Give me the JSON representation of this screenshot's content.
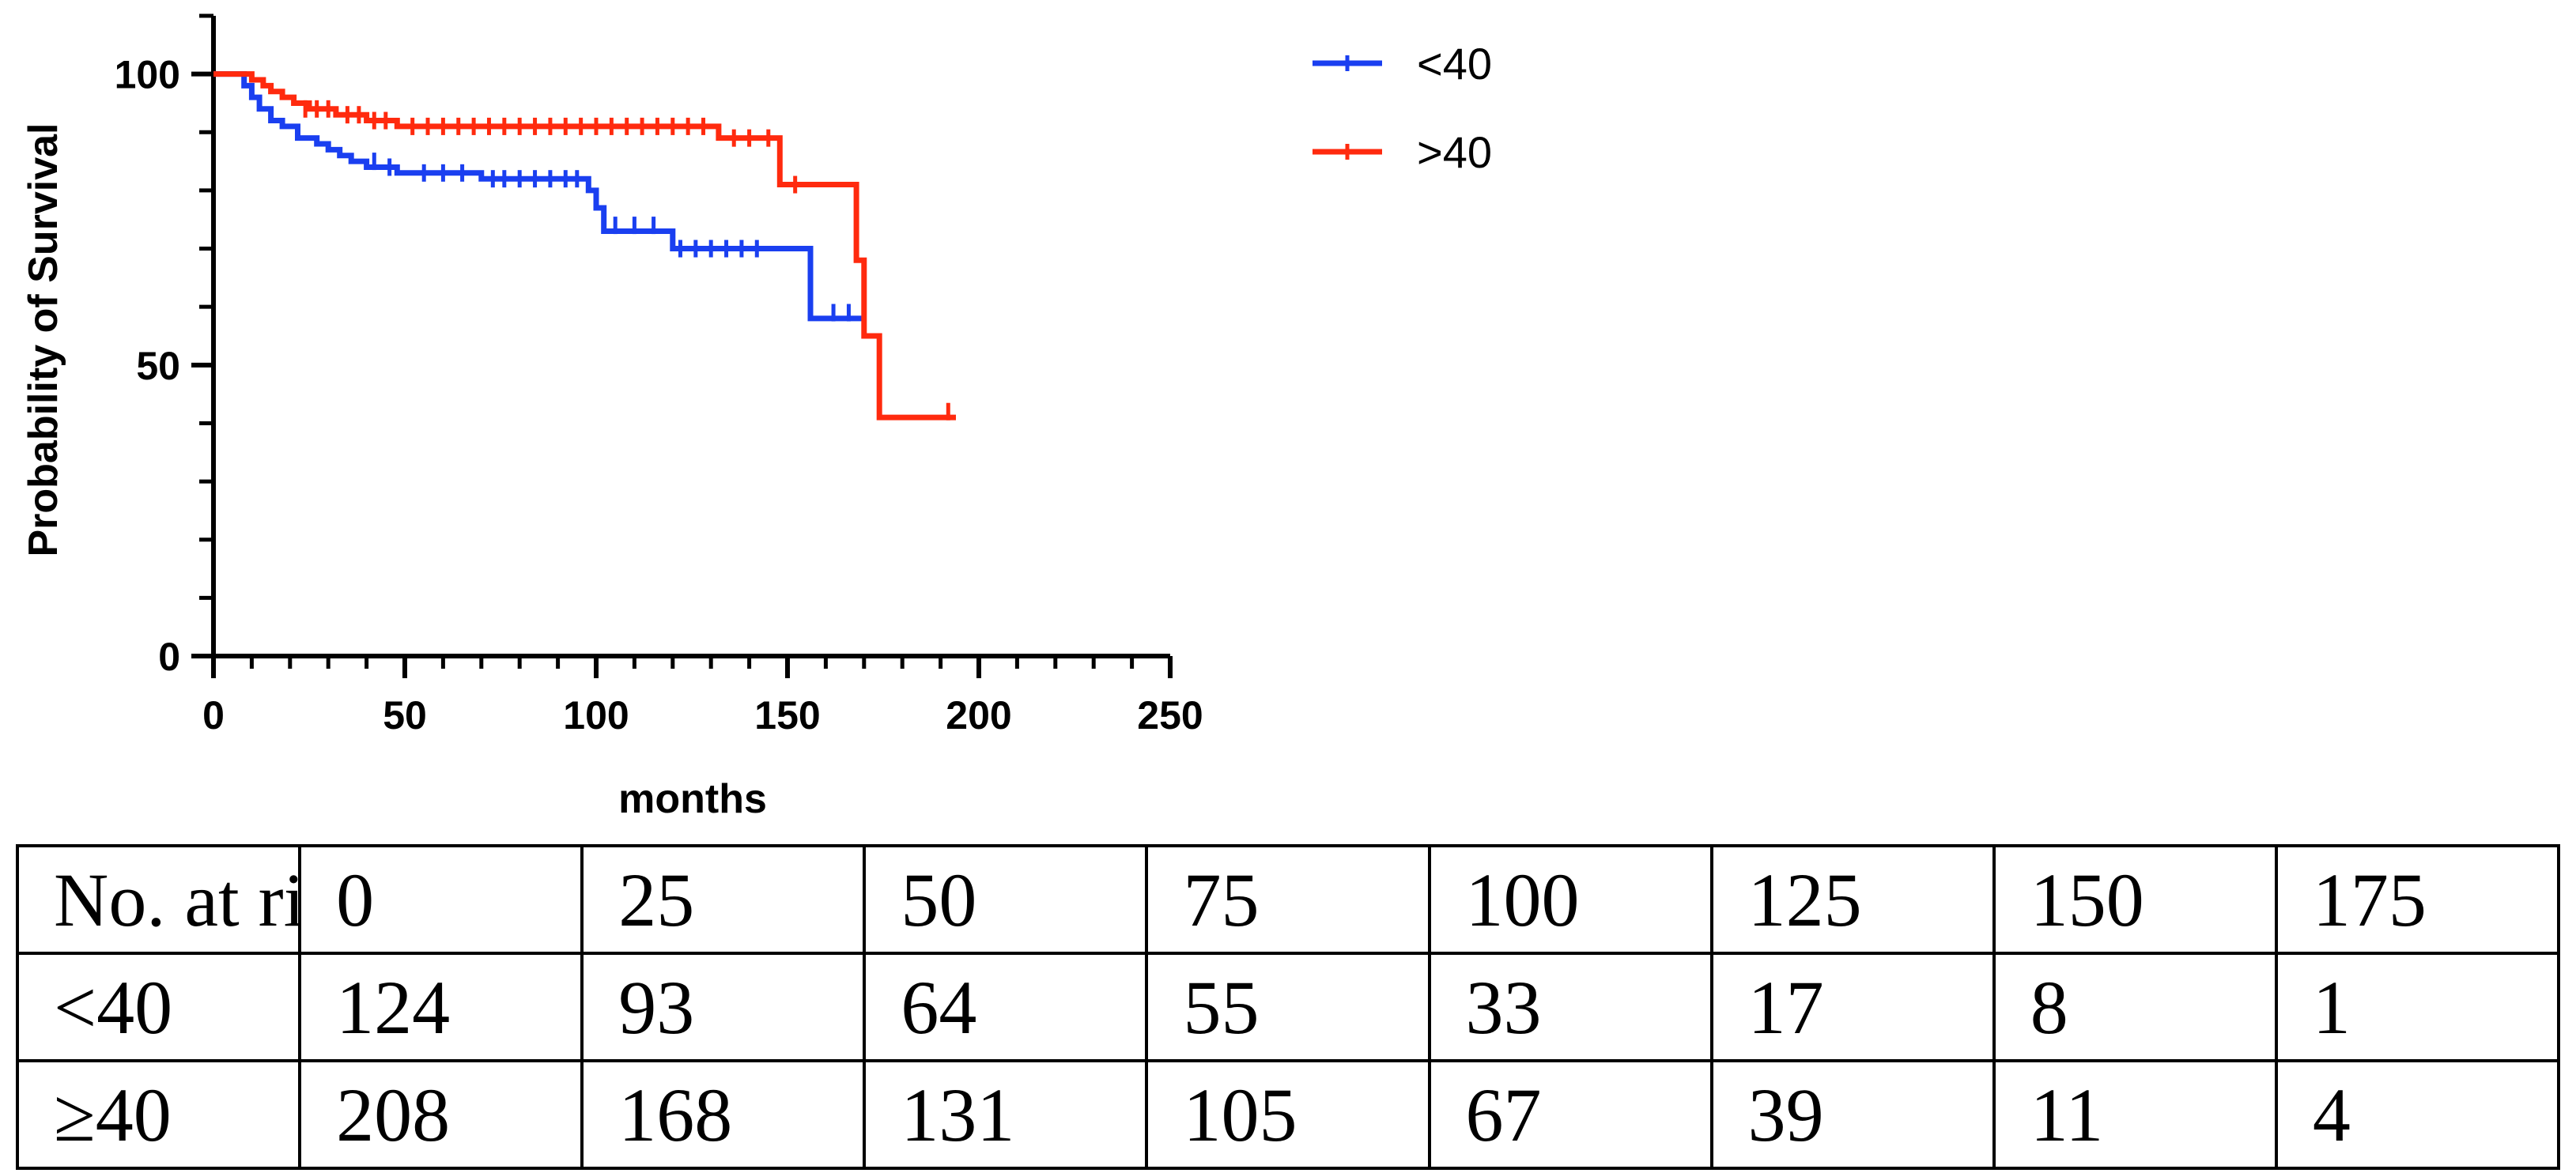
{
  "chart_data": {
    "type": "line",
    "subtype": "kaplan-meier",
    "title": "",
    "xlabel": "months",
    "ylabel": "Probability of Survival",
    "xlim": [
      0,
      250
    ],
    "ylim": [
      0,
      110
    ],
    "xticks": [
      0,
      50,
      100,
      150,
      200,
      250
    ],
    "yticks": [
      0,
      50,
      100
    ],
    "grid": false,
    "legend_position": "top-right",
    "series": [
      {
        "name": "<40",
        "color": "#1a3ff0",
        "steps": [
          [
            0,
            100
          ],
          [
            8,
            98
          ],
          [
            10,
            96
          ],
          [
            12,
            94
          ],
          [
            15,
            92
          ],
          [
            18,
            91
          ],
          [
            22,
            89
          ],
          [
            27,
            88
          ],
          [
            30,
            87
          ],
          [
            33,
            86
          ],
          [
            36,
            85
          ],
          [
            40,
            84
          ],
          [
            48,
            83
          ],
          [
            52,
            83
          ],
          [
            70,
            82
          ],
          [
            98,
            80
          ],
          [
            100,
            77
          ],
          [
            102,
            73
          ],
          [
            120,
            70
          ],
          [
            155,
            70
          ],
          [
            156,
            58
          ],
          [
            170,
            58
          ]
        ],
        "censors": [
          [
            42,
            85
          ],
          [
            46,
            84
          ],
          [
            55,
            83
          ],
          [
            60,
            83
          ],
          [
            65,
            83
          ],
          [
            73,
            82
          ],
          [
            76,
            82
          ],
          [
            80,
            82
          ],
          [
            84,
            82
          ],
          [
            88,
            82
          ],
          [
            92,
            82
          ],
          [
            95,
            82
          ],
          [
            105,
            74
          ],
          [
            110,
            74
          ],
          [
            115,
            74
          ],
          [
            122,
            70
          ],
          [
            126,
            70
          ],
          [
            130,
            70
          ],
          [
            134,
            70
          ],
          [
            138,
            70
          ],
          [
            142,
            70
          ],
          [
            162,
            59
          ],
          [
            166,
            59
          ]
        ]
      },
      {
        "name": ">40",
        "color": "#ff2a0e",
        "steps": [
          [
            0,
            100
          ],
          [
            10,
            99
          ],
          [
            13,
            98
          ],
          [
            15,
            97
          ],
          [
            18,
            96
          ],
          [
            21,
            95
          ],
          [
            25,
            94
          ],
          [
            32,
            93
          ],
          [
            40,
            92
          ],
          [
            48,
            91
          ],
          [
            132,
            91
          ],
          [
            132,
            89
          ],
          [
            148,
            89
          ],
          [
            148,
            81
          ],
          [
            168,
            81
          ],
          [
            168,
            68
          ],
          [
            170,
            68
          ],
          [
            170,
            55
          ],
          [
            174,
            55
          ],
          [
            174,
            41
          ],
          [
            194,
            41
          ]
        ],
        "censors": [
          [
            24,
            94
          ],
          [
            27,
            94
          ],
          [
            30,
            94
          ],
          [
            35,
            93
          ],
          [
            38,
            93
          ],
          [
            42,
            92
          ],
          [
            45,
            92
          ],
          [
            52,
            91
          ],
          [
            56,
            91
          ],
          [
            60,
            91
          ],
          [
            64,
            91
          ],
          [
            68,
            91
          ],
          [
            72,
            91
          ],
          [
            76,
            91
          ],
          [
            80,
            91
          ],
          [
            84,
            91
          ],
          [
            88,
            91
          ],
          [
            92,
            91
          ],
          [
            96,
            91
          ],
          [
            100,
            91
          ],
          [
            104,
            91
          ],
          [
            108,
            91
          ],
          [
            112,
            91
          ],
          [
            116,
            91
          ],
          [
            120,
            91
          ],
          [
            124,
            91
          ],
          [
            128,
            91
          ],
          [
            136,
            89
          ],
          [
            140,
            89
          ],
          [
            145,
            89
          ],
          [
            152,
            81
          ],
          [
            192,
            42
          ]
        ]
      }
    ]
  },
  "table": {
    "header": [
      "No. at risk",
      "0",
      "25",
      "50",
      "75",
      "100",
      "125",
      "150",
      "175"
    ],
    "rows": [
      [
        "<40",
        "124",
        "93",
        "64",
        "55",
        "33",
        "17",
        "8",
        "1"
      ],
      [
        "≥40",
        "208",
        "168",
        "131",
        "105",
        "67",
        "39",
        "11",
        "4"
      ]
    ]
  }
}
